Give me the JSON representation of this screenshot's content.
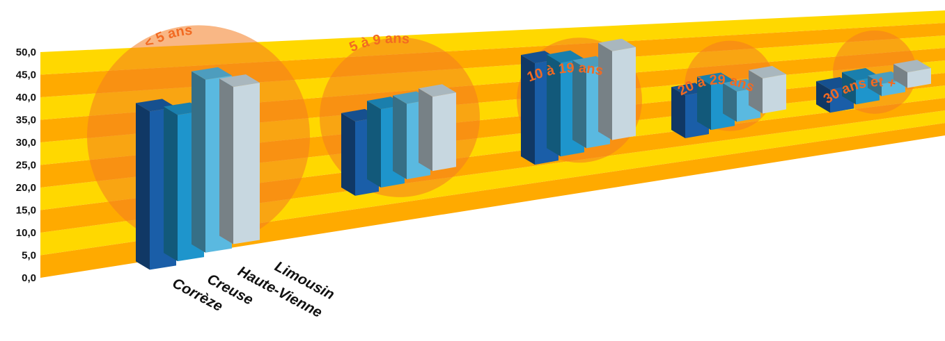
{
  "chart_data": {
    "type": "bar",
    "categories": [
      "< 5 ans",
      "5 à 9 ans",
      "10 à 19 ans",
      "20 à 29 ans",
      "30 ans et +"
    ],
    "series": [
      {
        "name": "Corrèze",
        "values": [
          40.0,
          21.0,
          32.0,
          15.0,
          9.0
        ]
      },
      {
        "name": "Creuse",
        "values": [
          37.5,
          22.5,
          30.0,
          16.0,
          9.5
        ]
      },
      {
        "name": "Haute-Vienne",
        "values": [
          45.0,
          22.0,
          26.0,
          11.0,
          5.0
        ]
      },
      {
        "name": "Limousin",
        "values": [
          41.5,
          22.0,
          29.5,
          13.0,
          6.5
        ]
      }
    ],
    "yticks": [
      "0,0",
      "5,0",
      "10,0",
      "15,0",
      "20,0",
      "25,0",
      "30,0",
      "35,0",
      "40,0",
      "45,0",
      "50,0"
    ],
    "ylim": [
      0,
      50
    ],
    "colors": {
      "series": [
        "#0b3a70",
        "#1a5ea8",
        "#1e95cc",
        "#5ab9e0",
        "#c7d7e0"
      ],
      "band_light": "#ffd800",
      "band_dark": "#ffaa00",
      "category_label": "#f26a22",
      "circle": "#f47b20"
    },
    "legend": "below first group, rotated labels"
  }
}
